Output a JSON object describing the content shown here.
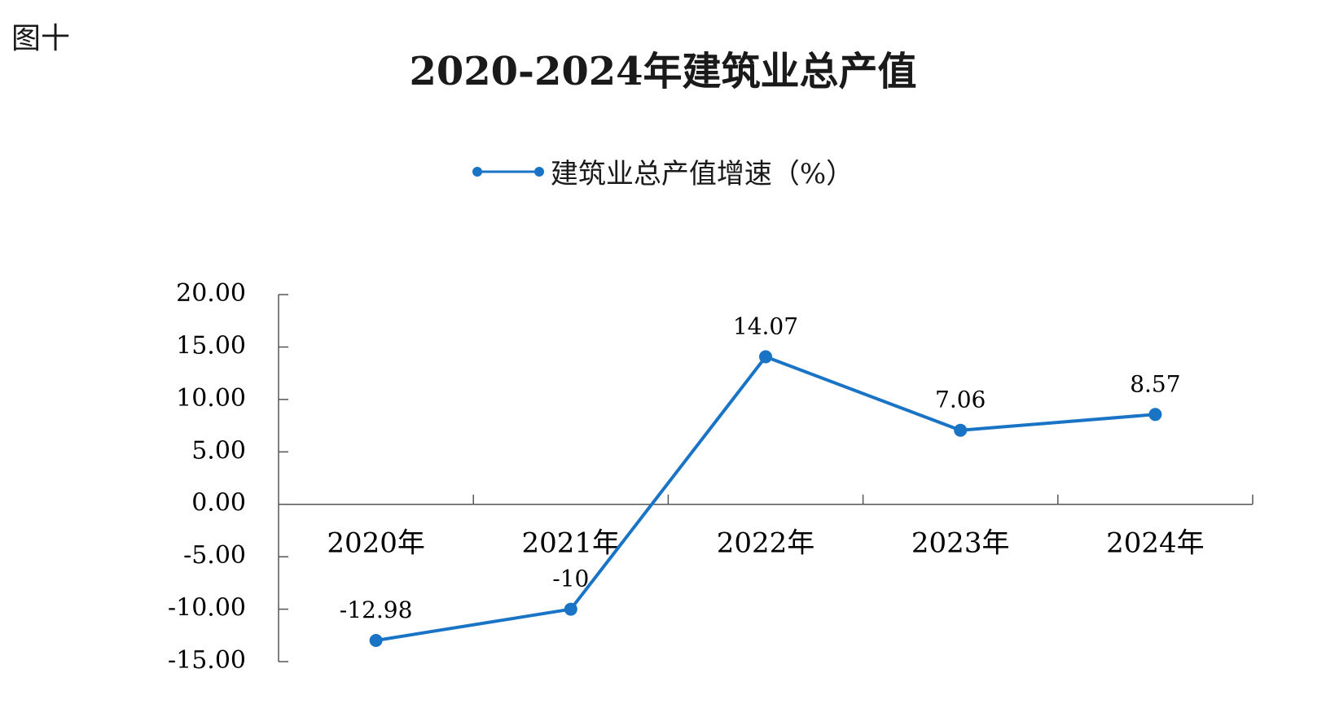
{
  "figure_label": "图十",
  "chart_data": {
    "type": "line",
    "title": "2020-2024年建筑业总产值",
    "categories": [
      "2020年",
      "2021年",
      "2022年",
      "2023年",
      "2024年"
    ],
    "series": [
      {
        "name": "建筑业总产值增速（%）",
        "values": [
          -12.98,
          -10,
          14.07,
          7.06,
          8.57
        ],
        "labels": [
          "-12.98",
          "-10",
          "14.07",
          "7.06",
          "8.57"
        ],
        "color": "#1a74c6"
      }
    ],
    "y_ticks": [
      "20.00",
      "15.00",
      "10.00",
      "5.00",
      "0.00",
      "-5.00",
      "-10.00",
      "-15.00"
    ],
    "ylim": [
      -15,
      20
    ],
    "legend": "top-center",
    "grid": false
  }
}
